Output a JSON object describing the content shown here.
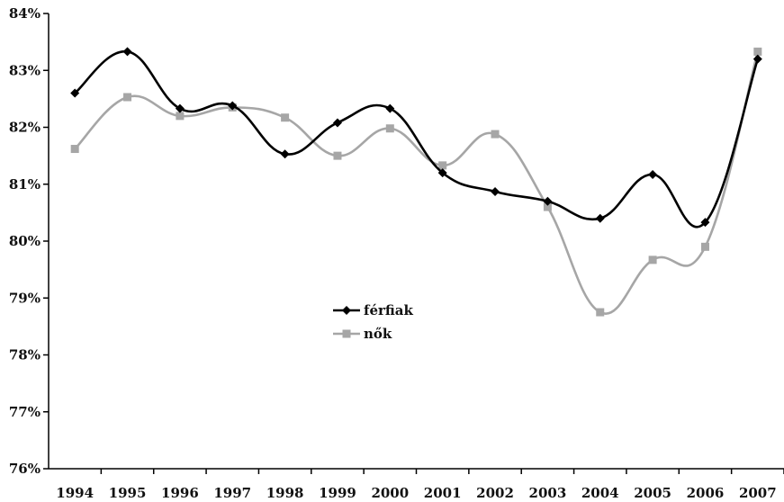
{
  "chart_data": {
    "type": "line",
    "title": "",
    "xlabel": "",
    "ylabel": "",
    "categories": [
      "1994",
      "1995",
      "1996",
      "1997",
      "1998",
      "1999",
      "2000",
      "2001",
      "2002",
      "2003",
      "2004",
      "2005",
      "2006",
      "2007"
    ],
    "y_ticks": [
      "76%",
      "77%",
      "78%",
      "79%",
      "80%",
      "81%",
      "82%",
      "83%",
      "84%"
    ],
    "ylim": [
      76,
      84
    ],
    "grid": false,
    "smooth": true,
    "legend_position": "center-left",
    "series": [
      {
        "name": "férfiak",
        "color": "#000000",
        "marker": "diamond",
        "values": [
          82.6,
          83.33,
          82.33,
          82.38,
          81.53,
          82.08,
          82.33,
          81.2,
          80.87,
          80.7,
          80.4,
          81.17,
          80.33,
          83.2
        ]
      },
      {
        "name": "nők",
        "color": "#a6a6a6",
        "marker": "square",
        "values": [
          81.62,
          82.53,
          82.2,
          82.35,
          82.17,
          81.5,
          81.98,
          81.33,
          81.88,
          80.6,
          78.75,
          79.67,
          79.9,
          83.33
        ]
      }
    ]
  }
}
